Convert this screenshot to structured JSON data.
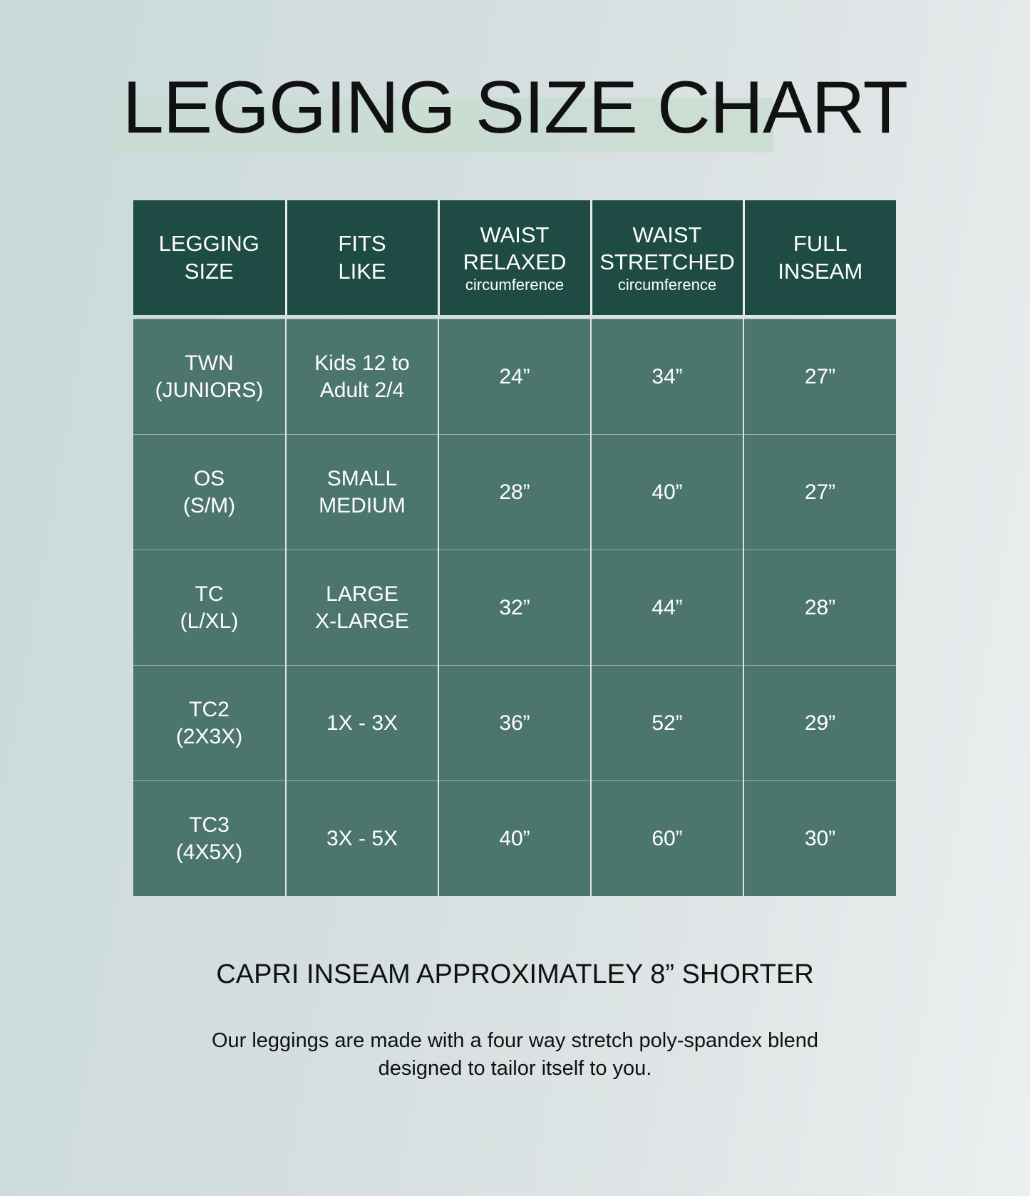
{
  "title": "LEGGING SIZE CHART",
  "colors": {
    "header": "#1f4b45",
    "body": "#4b756d",
    "highlight": "#c9dcd1"
  },
  "table": {
    "headers": [
      {
        "label": "LEGGING",
        "label2": "SIZE",
        "sub": ""
      },
      {
        "label": "FITS",
        "label2": "LIKE",
        "sub": ""
      },
      {
        "label": "WAIST",
        "label2": "RELAXED",
        "sub": "circumference"
      },
      {
        "label": "WAIST",
        "label2": "STRETCHED",
        "sub": "circumference"
      },
      {
        "label": "FULL",
        "label2": "INSEAM",
        "sub": ""
      }
    ],
    "rows": [
      {
        "size": "TWN",
        "size2": "(JUNIORS)",
        "fits": "Kids 12 to",
        "fits2": "Adult 2/4",
        "relaxed": "24”",
        "stretched": "34”",
        "inseam": "27”"
      },
      {
        "size": "OS",
        "size2": "(S/M)",
        "fits": "SMALL",
        "fits2": "MEDIUM",
        "relaxed": "28”",
        "stretched": "40”",
        "inseam": "27”"
      },
      {
        "size": "TC",
        "size2": "(L/XL)",
        "fits": "LARGE",
        "fits2": "X-LARGE",
        "relaxed": "32”",
        "stretched": "44”",
        "inseam": "28”"
      },
      {
        "size": "TC2",
        "size2": "(2X3X)",
        "fits": "1X - 3X",
        "fits2": "",
        "relaxed": "36”",
        "stretched": "52”",
        "inseam": "29”"
      },
      {
        "size": "TC3",
        "size2": "(4X5X)",
        "fits": "3X - 5X",
        "fits2": "",
        "relaxed": "40”",
        "stretched": "60”",
        "inseam": "30”"
      }
    ]
  },
  "note": "CAPRI INSEAM APPROXIMATLEY 8” SHORTER",
  "description": {
    "line1": "Our leggings are made with a four way stretch poly-spandex blend",
    "line2": "designed to tailor itself to you."
  }
}
